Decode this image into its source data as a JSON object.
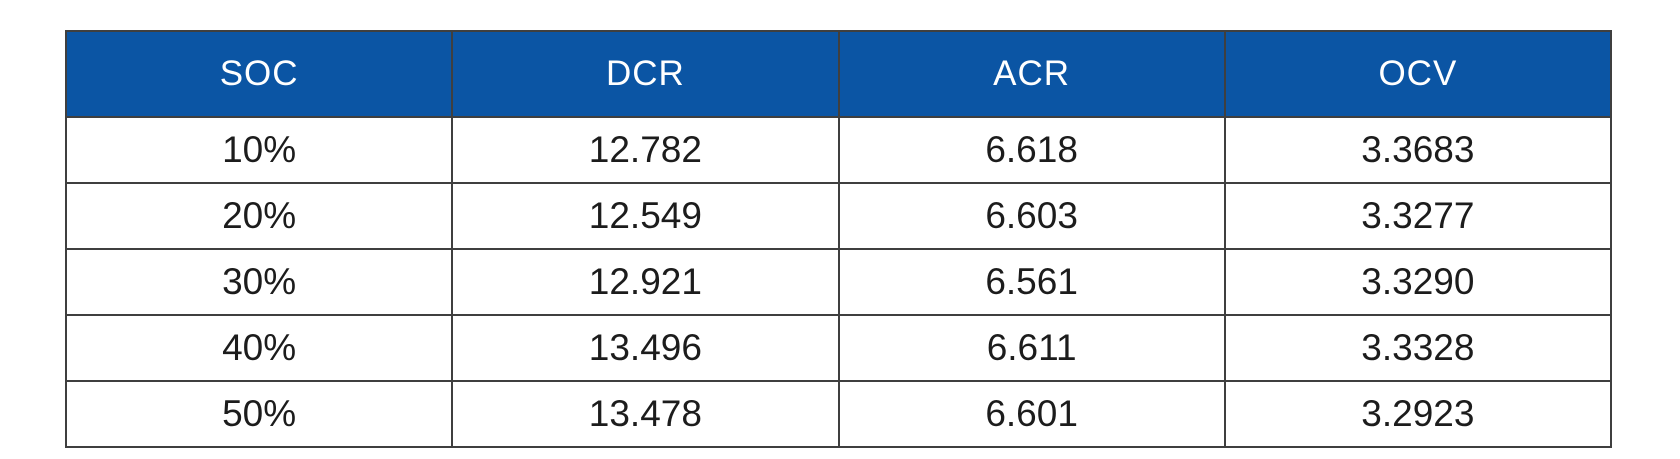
{
  "colors": {
    "header_bg": "#0b55a4",
    "header_text": "#ffffff",
    "border": "#3f3f3f",
    "cell_text": "#1c1c1c",
    "page_bg": "#ffffff"
  },
  "table": {
    "headers": [
      "SOC",
      "DCR",
      "ACR",
      "OCV"
    ],
    "rows": [
      [
        "10%",
        "12.782",
        "6.618",
        "3.3683"
      ],
      [
        "20%",
        "12.549",
        "6.603",
        "3.3277"
      ],
      [
        "30%",
        "12.921",
        "6.561",
        "3.3290"
      ],
      [
        "40%",
        "13.496",
        "6.611",
        "3.3328"
      ],
      [
        "50%",
        "13.478",
        "6.601",
        "3.2923"
      ]
    ]
  },
  "chart_data": {
    "type": "table",
    "title": "",
    "columns": [
      "SOC",
      "DCR",
      "ACR",
      "OCV"
    ],
    "rows": [
      {
        "SOC": "10%",
        "DCR": 12.782,
        "ACR": 6.618,
        "OCV": 3.3683
      },
      {
        "SOC": "20%",
        "DCR": 12.549,
        "ACR": 6.603,
        "OCV": 3.3277
      },
      {
        "SOC": "30%",
        "DCR": 12.921,
        "ACR": 6.561,
        "OCV": 3.329
      },
      {
        "SOC": "40%",
        "DCR": 13.496,
        "ACR": 6.611,
        "OCV": 3.3328
      },
      {
        "SOC": "50%",
        "DCR": 13.478,
        "ACR": 6.601,
        "OCV": 3.2923
      }
    ],
    "layout": {
      "header_fill": "#0b55a4",
      "header_text_color": "#ffffff",
      "grid": true,
      "cell_alignment": "center"
    }
  }
}
